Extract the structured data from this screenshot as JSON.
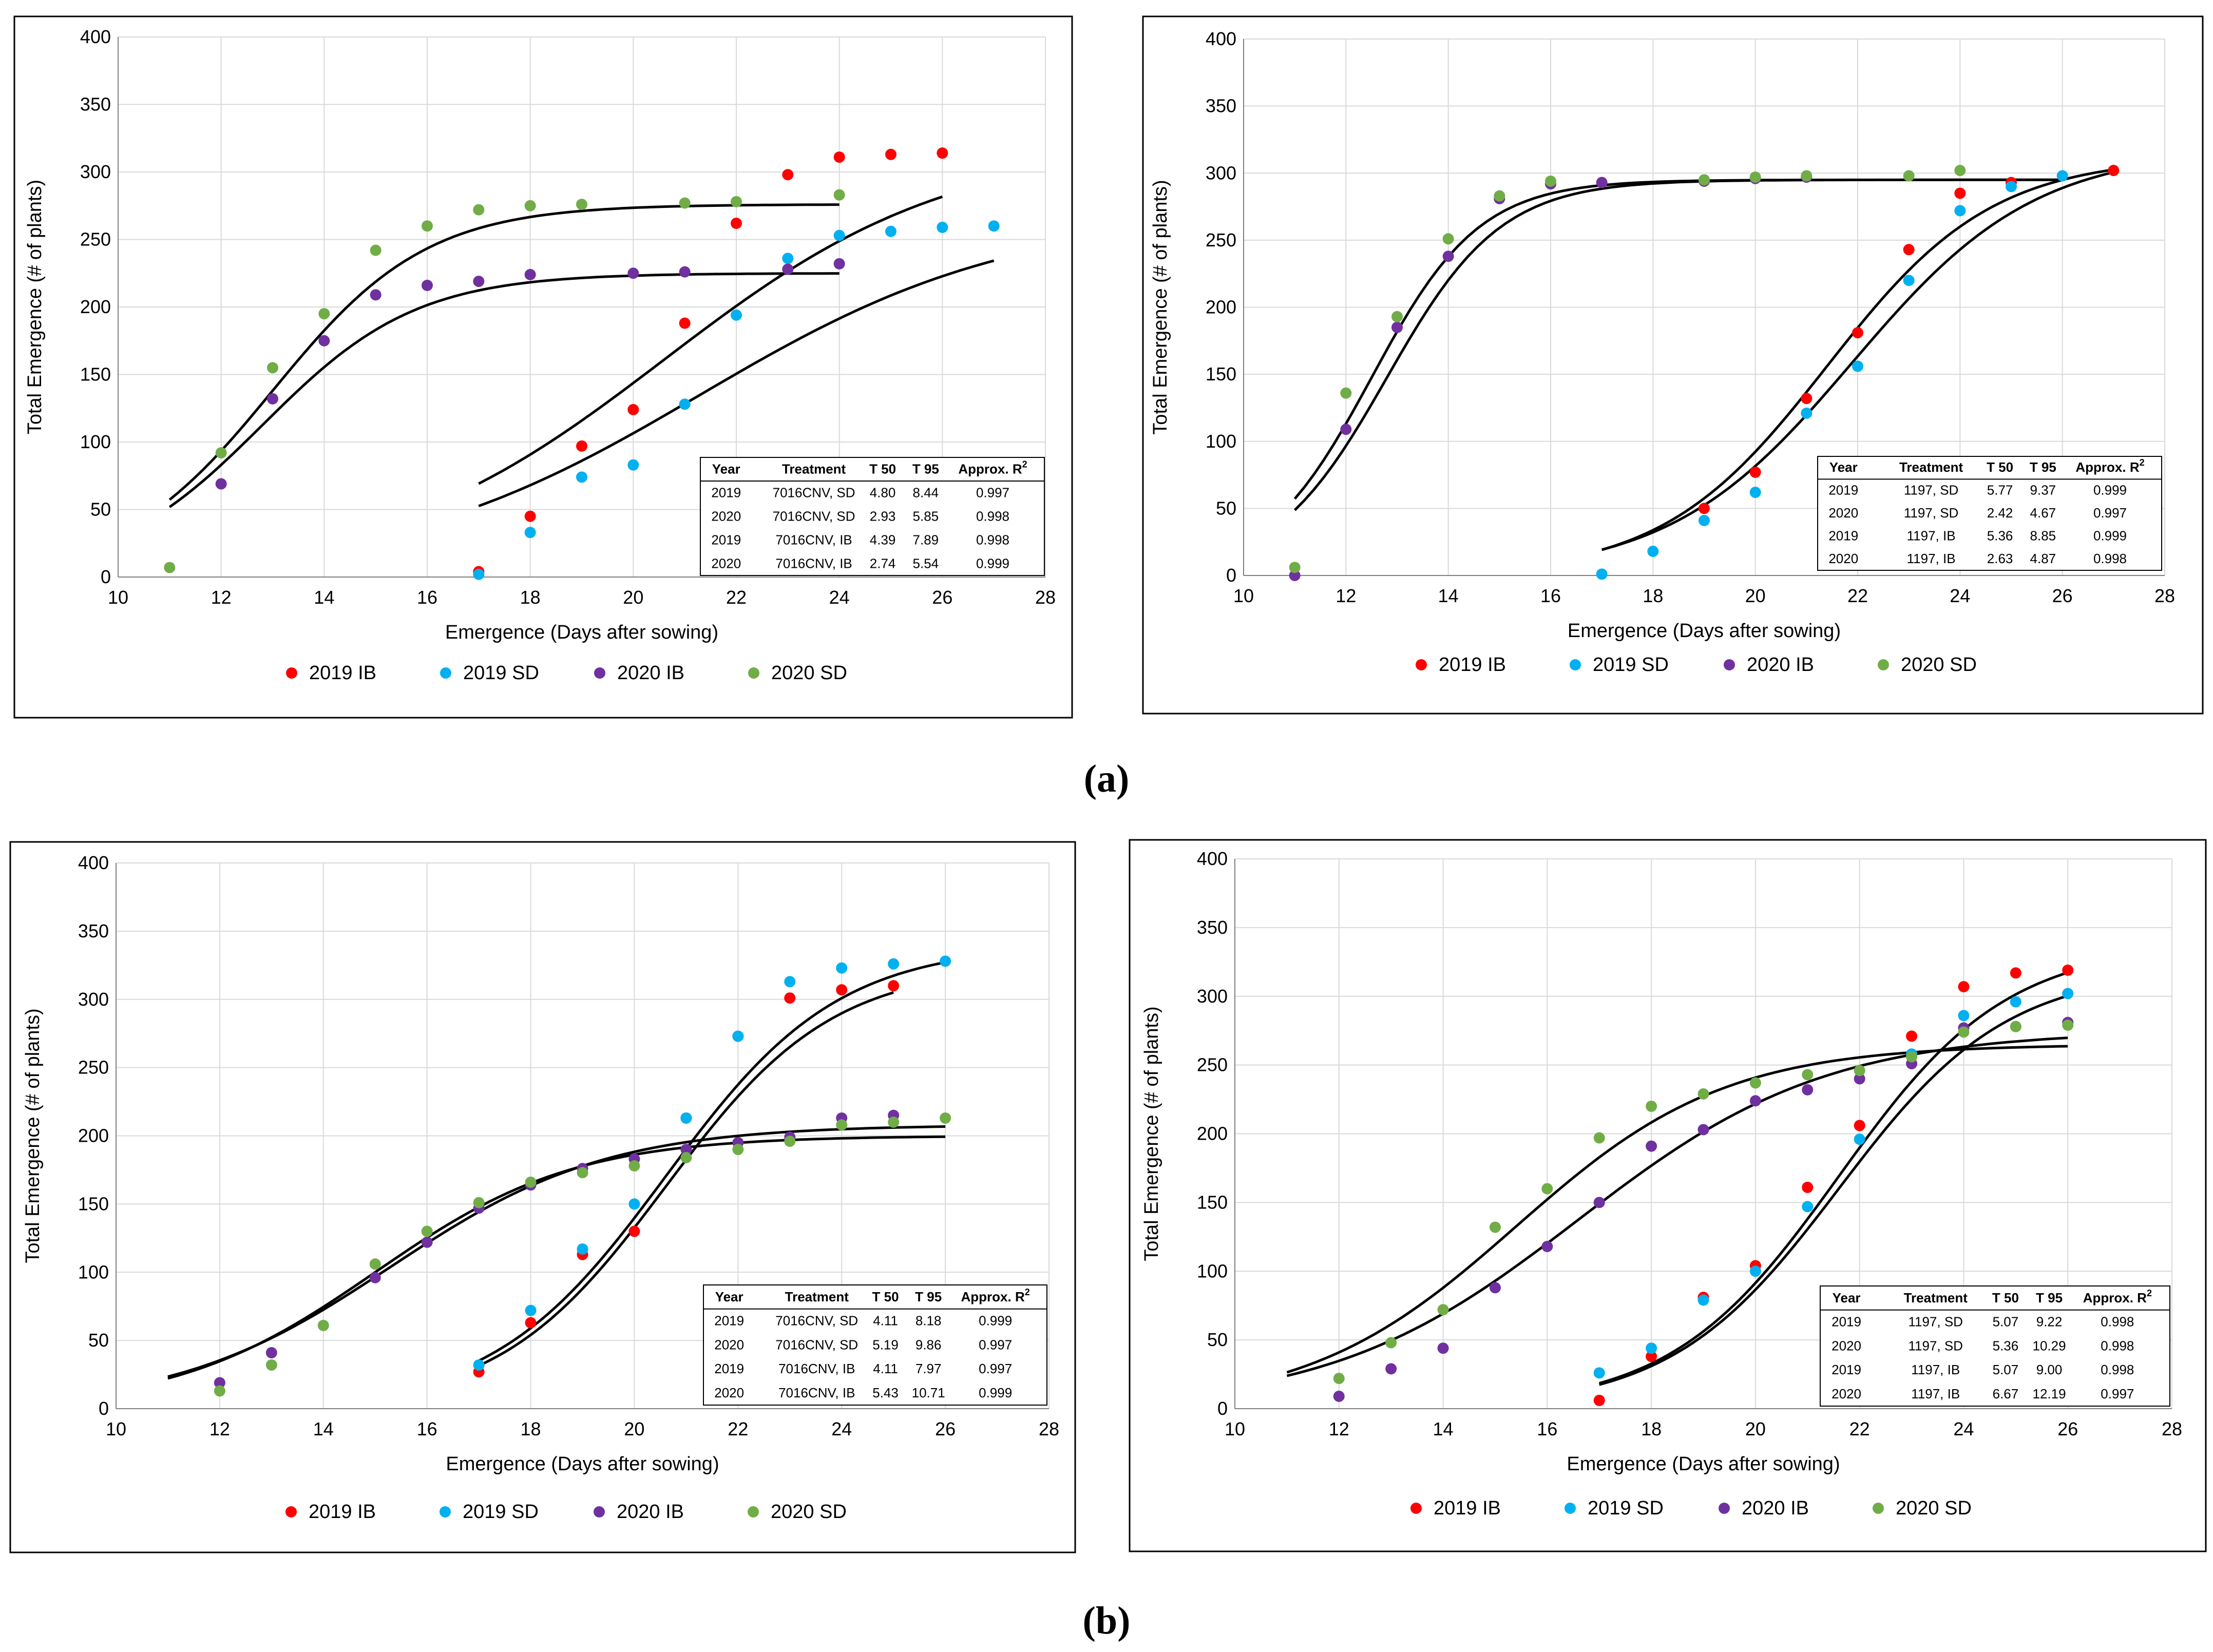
{
  "captions": {
    "a": "(a)",
    "b": "(b)"
  },
  "colors": {
    "2019 IB": "#ff0000",
    "2019 SD": "#00b0f0",
    "2020 IB": "#7030a0",
    "2020 SD": "#70ad47",
    "fit": "#000000"
  },
  "chart_data": [
    {
      "type": "scatter",
      "xlabel": "Emergence (Days after sowing)",
      "ylabel": "Total Emergence (# of plants)",
      "xlim": [
        10,
        28
      ],
      "ylim": [
        0,
        400
      ],
      "xstep": 2,
      "ystep": 50,
      "legend": [
        "2019 IB",
        "2019 SD",
        "2020 IB",
        "2020 SD"
      ],
      "series": [
        {
          "name": "2019 IB",
          "x": [
            17,
            18,
            19,
            20,
            21,
            22,
            23,
            24,
            25,
            26
          ],
          "y": [
            4,
            45,
            97,
            124,
            188,
            262,
            298,
            311,
            313,
            314
          ]
        },
        {
          "name": "2019 SD",
          "x": [
            17,
            18,
            19,
            20,
            21,
            22,
            23,
            24,
            25,
            26,
            27
          ],
          "y": [
            2,
            33,
            74,
            83,
            128,
            194,
            236,
            253,
            256,
            259,
            260
          ]
        },
        {
          "name": "2020 IB",
          "x": [
            12,
            13,
            14,
            15,
            16,
            17,
            18,
            20,
            21,
            23,
            24
          ],
          "y": [
            69,
            132,
            175,
            209,
            216,
            219,
            224,
            225,
            226,
            228,
            232
          ]
        },
        {
          "name": "2020 SD",
          "x": [
            11,
            12,
            13,
            14,
            15,
            16,
            17,
            18,
            19,
            21,
            22,
            24
          ],
          "y": [
            7,
            92,
            155,
            195,
            242,
            260,
            272,
            275,
            276,
            277,
            278,
            283
          ]
        }
      ],
      "fits": [
        {
          "xmin": 11,
          "xmax": 24,
          "max": 276,
          "t50": 13.0,
          "k": 0.67
        },
        {
          "xmin": 11,
          "xmax": 24,
          "max": 225,
          "t50": 12.8,
          "k": 0.67
        },
        {
          "xmin": 17,
          "xmax": 26,
          "max": 322,
          "t50": 20.6,
          "k": 0.36
        },
        {
          "xmin": 17,
          "xmax": 27,
          "max": 270,
          "t50": 21.3,
          "k": 0.33
        }
      ],
      "table": {
        "headers": [
          "Year",
          "Treatment",
          "T 50",
          "T 95",
          "Approx. R"
        ],
        "r2_sup": "2",
        "rows": [
          [
            "2019",
            "7016CNV, SD",
            "4.80",
            "8.44",
            "0.997"
          ],
          [
            "2020",
            "7016CNV, SD",
            "2.93",
            "5.85",
            "0.998"
          ],
          [
            "2019",
            "7016CNV, IB",
            "4.39",
            "7.89",
            "0.998"
          ],
          [
            "2020",
            "7016CNV, IB",
            "2.74",
            "5.54",
            "0.999"
          ]
        ]
      }
    },
    {
      "type": "scatter",
      "xlabel": "Emergence (Days after sowing)",
      "ylabel": "Total Emergence (# of plants)",
      "xlim": [
        10,
        28
      ],
      "ylim": [
        0,
        400
      ],
      "xstep": 2,
      "ystep": 50,
      "legend": [
        "2019 IB",
        "2019 SD",
        "2020 IB",
        "2020 SD"
      ],
      "series": [
        {
          "name": "2019 IB",
          "x": [
            19,
            20,
            21,
            22,
            23,
            24,
            25,
            27
          ],
          "y": [
            50,
            77,
            132,
            181,
            243,
            285,
            293,
            302
          ]
        },
        {
          "name": "2019 SD",
          "x": [
            17,
            18,
            19,
            20,
            21,
            22,
            23,
            24,
            25,
            26
          ],
          "y": [
            1,
            18,
            41,
            62,
            121,
            156,
            220,
            272,
            290,
            298
          ]
        },
        {
          "name": "2020 IB",
          "x": [
            11,
            12,
            13,
            14,
            15,
            16,
            17,
            19,
            20,
            21
          ],
          "y": [
            0,
            109,
            185,
            238,
            281,
            292,
            293,
            294,
            296,
            297
          ]
        },
        {
          "name": "2020 SD",
          "x": [
            11,
            12,
            13,
            14,
            15,
            16,
            19,
            20,
            21,
            23,
            24
          ],
          "y": [
            6,
            136,
            193,
            251,
            283,
            294,
            295,
            297,
            298,
            298,
            302
          ]
        }
      ],
      "fits": [
        {
          "xmin": 11,
          "xmax": 26,
          "max": 295,
          "t50": 12.5,
          "k": 0.95
        },
        {
          "xmin": 11,
          "xmax": 26,
          "max": 295,
          "t50": 12.8,
          "k": 0.9
        },
        {
          "xmin": 17,
          "xmax": 27,
          "max": 312,
          "t50": 21.4,
          "k": 0.62
        },
        {
          "xmin": 17,
          "xmax": 27,
          "max": 318,
          "t50": 21.9,
          "k": 0.56
        }
      ],
      "table": {
        "headers": [
          "Year",
          "Treatment",
          "T 50",
          "T 95",
          "Approx. R"
        ],
        "r2_sup": "2",
        "rows": [
          [
            "2019",
            "1197, SD",
            "5.77",
            "9.37",
            "0.999"
          ],
          [
            "2020",
            "1197, SD",
            "2.42",
            "4.67",
            "0.997"
          ],
          [
            "2019",
            "1197, IB",
            "5.36",
            "8.85",
            "0.999"
          ],
          [
            "2020",
            "1197, IB",
            "2.63",
            "4.87",
            "0.998"
          ]
        ]
      }
    },
    {
      "type": "scatter",
      "xlabel": "Emergence (Days after sowing)",
      "ylabel": "Total Emergence (# of plants)",
      "xlim": [
        10,
        28
      ],
      "ylim": [
        0,
        400
      ],
      "xstep": 2,
      "ystep": 50,
      "legend": [
        "2019 IB",
        "2019 SD",
        "2020 IB",
        "2020 SD"
      ],
      "series": [
        {
          "name": "2019 IB",
          "x": [
            17,
            18,
            19,
            20,
            21,
            22,
            23,
            24,
            25
          ],
          "y": [
            27,
            63,
            113,
            130,
            213,
            273,
            301,
            307,
            310
          ]
        },
        {
          "name": "2019 SD",
          "x": [
            17,
            18,
            19,
            20,
            21,
            22,
            23,
            24,
            25,
            26
          ],
          "y": [
            32,
            72,
            117,
            150,
            213,
            273,
            313,
            323,
            326,
            328
          ]
        },
        {
          "name": "2020 IB",
          "x": [
            12,
            13,
            15,
            16,
            17,
            18,
            19,
            20,
            21,
            22,
            23,
            24,
            25
          ],
          "y": [
            19,
            41,
            96,
            122,
            147,
            164,
            176,
            183,
            190,
            195,
            199,
            213,
            215
          ]
        },
        {
          "name": "2020 SD",
          "x": [
            12,
            13,
            14,
            15,
            16,
            17,
            18,
            19,
            20,
            21,
            22,
            23,
            24,
            25,
            26
          ],
          "y": [
            13,
            32,
            61,
            106,
            130,
            151,
            166,
            173,
            178,
            184,
            190,
            196,
            208,
            210,
            213
          ]
        }
      ],
      "fits": [
        {
          "xmin": 11,
          "xmax": 26,
          "max": 208,
          "t50": 15.3,
          "k": 0.48
        },
        {
          "xmin": 11,
          "xmax": 26,
          "max": 200,
          "t50": 15.0,
          "k": 0.52
        },
        {
          "xmin": 17,
          "xmax": 25,
          "max": 325,
          "t50": 20.6,
          "k": 0.62
        },
        {
          "xmin": 17,
          "xmax": 26,
          "max": 340,
          "t50": 20.6,
          "k": 0.6
        }
      ],
      "table": {
        "headers": [
          "Year",
          "Treatment",
          "T 50",
          "T 95",
          "Approx. R"
        ],
        "r2_sup": "2",
        "rows": [
          [
            "2019",
            "7016CNV, SD",
            "4.11",
            "8.18",
            "0.999"
          ],
          [
            "2020",
            "7016CNV, SD",
            "5.19",
            "9.86",
            "0.997"
          ],
          [
            "2019",
            "7016CNV, IB",
            "4.11",
            "7.97",
            "0.997"
          ],
          [
            "2020",
            "7016CNV, IB",
            "5.43",
            "10.71",
            "0.999"
          ]
        ]
      }
    },
    {
      "type": "scatter",
      "xlabel": "Emergence (Days after sowing)",
      "ylabel": "Total Emergence (# of plants)",
      "xlim": [
        10,
        28
      ],
      "ylim": [
        0,
        400
      ],
      "xstep": 2,
      "ystep": 50,
      "legend": [
        "2019 IB",
        "2019 SD",
        "2020 IB",
        "2020 SD"
      ],
      "series": [
        {
          "name": "2019 IB",
          "x": [
            17,
            18,
            19,
            20,
            21,
            22,
            23,
            24,
            25,
            26
          ],
          "y": [
            6,
            38,
            81,
            104,
            161,
            206,
            271,
            307,
            317,
            319
          ]
        },
        {
          "name": "2019 SD",
          "x": [
            17,
            18,
            19,
            20,
            21,
            22,
            23,
            24,
            25,
            26
          ],
          "y": [
            26,
            44,
            79,
            100,
            147,
            196,
            258,
            286,
            296,
            302
          ]
        },
        {
          "name": "2020 IB",
          "x": [
            12,
            13,
            14,
            15,
            16,
            17,
            18,
            19,
            20,
            21,
            22,
            23,
            24,
            25,
            26
          ],
          "y": [
            9,
            29,
            44,
            88,
            118,
            150,
            191,
            203,
            224,
            232,
            240,
            251,
            277,
            278,
            281
          ]
        },
        {
          "name": "2020 SD",
          "x": [
            12,
            13,
            14,
            15,
            16,
            17,
            18,
            19,
            20,
            21,
            22,
            23,
            24,
            25,
            26
          ],
          "y": [
            22,
            48,
            72,
            132,
            160,
            197,
            220,
            229,
            237,
            243,
            246,
            256,
            274,
            278,
            279
          ]
        }
      ],
      "fits": [
        {
          "xmin": 11,
          "xmax": 26,
          "max": 265,
          "t50": 15.4,
          "k": 0.5
        },
        {
          "xmin": 11,
          "xmax": 26,
          "max": 275,
          "t50": 16.6,
          "k": 0.42
        },
        {
          "xmin": 17,
          "xmax": 26,
          "max": 338,
          "t50": 21.6,
          "k": 0.62
        },
        {
          "xmin": 17,
          "xmax": 26,
          "max": 320,
          "t50": 21.6,
          "k": 0.62
        }
      ],
      "table": {
        "headers": [
          "Year",
          "Treatment",
          "T 50",
          "T 95",
          "Approx. R"
        ],
        "r2_sup": "2",
        "rows": [
          [
            "2019",
            "1197, SD",
            "5.07",
            "9.22",
            "0.998"
          ],
          [
            "2020",
            "1197, SD",
            "5.36",
            "10.29",
            "0.998"
          ],
          [
            "2019",
            "1197, IB",
            "5.07",
            "9.00",
            "0.998"
          ],
          [
            "2020",
            "1197, IB",
            "6.67",
            "12.19",
            "0.997"
          ]
        ]
      }
    }
  ]
}
